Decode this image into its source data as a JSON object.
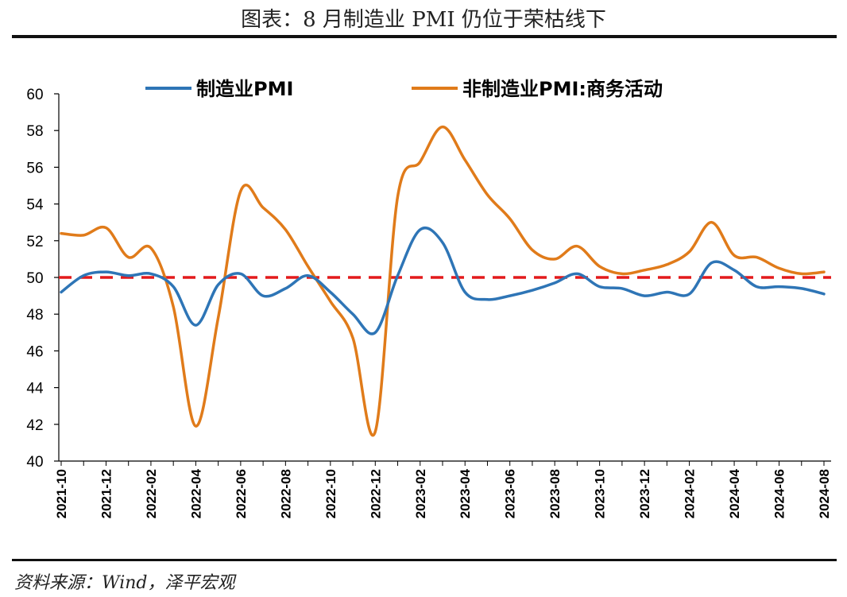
{
  "header": {
    "title": "图表：8 月制造业 PMI 仍位于荣枯线下"
  },
  "footer": {
    "source": "资料来源：Wind，泽平宏观"
  },
  "chart_data": {
    "type": "line",
    "title": "图表：8 月制造业 PMI 仍位于荣枯线下",
    "xlabel": "",
    "ylabel": "",
    "ylim": [
      40,
      60
    ],
    "yticks": [
      40,
      42,
      44,
      46,
      48,
      50,
      52,
      54,
      56,
      58,
      60
    ],
    "grid": false,
    "legend_position": "top",
    "reference_line": {
      "value": 50,
      "color": "#E31A1C",
      "style": "dashed"
    },
    "x": [
      "2021-10",
      "2021-11",
      "2021-12",
      "2022-01",
      "2022-02",
      "2022-03",
      "2022-04",
      "2022-05",
      "2022-06",
      "2022-07",
      "2022-08",
      "2022-09",
      "2022-10",
      "2022-11",
      "2022-12",
      "2023-01",
      "2023-02",
      "2023-03",
      "2023-04",
      "2023-05",
      "2023-06",
      "2023-07",
      "2023-08",
      "2023-09",
      "2023-10",
      "2023-11",
      "2023-12",
      "2024-01",
      "2024-02",
      "2024-03",
      "2024-04",
      "2024-05",
      "2024-06",
      "2024-07",
      "2024-08"
    ],
    "x_tick_labels": [
      "2021-10",
      "2021-12",
      "2022-02",
      "2022-04",
      "2022-06",
      "2022-08",
      "2022-10",
      "2022-12",
      "2023-02",
      "2023-04",
      "2023-06",
      "2023-08",
      "2023-10",
      "2023-12",
      "2024-02",
      "2024-04",
      "2024-06",
      "2024-08"
    ],
    "series": [
      {
        "name": "制造业PMI",
        "color": "#2E75B6",
        "values": [
          49.2,
          50.1,
          50.3,
          50.1,
          50.2,
          49.5,
          47.4,
          49.6,
          50.2,
          49.0,
          49.4,
          50.1,
          49.2,
          48.0,
          47.0,
          50.1,
          52.6,
          51.9,
          49.2,
          48.8,
          49.0,
          49.3,
          49.7,
          50.2,
          49.5,
          49.4,
          49.0,
          49.2,
          49.1,
          50.8,
          50.4,
          49.5,
          49.5,
          49.4,
          49.1
        ]
      },
      {
        "name": "非制造业PMI:商务活动",
        "color": "#E07B1A",
        "values": [
          52.4,
          52.3,
          52.7,
          51.1,
          51.6,
          48.4,
          41.9,
          47.8,
          54.7,
          53.8,
          52.6,
          50.6,
          48.7,
          46.7,
          41.6,
          54.4,
          56.3,
          58.2,
          56.4,
          54.5,
          53.2,
          51.5,
          51.0,
          51.7,
          50.6,
          50.2,
          50.4,
          50.7,
          51.4,
          53.0,
          51.2,
          51.1,
          50.5,
          50.2,
          50.3
        ]
      }
    ]
  }
}
